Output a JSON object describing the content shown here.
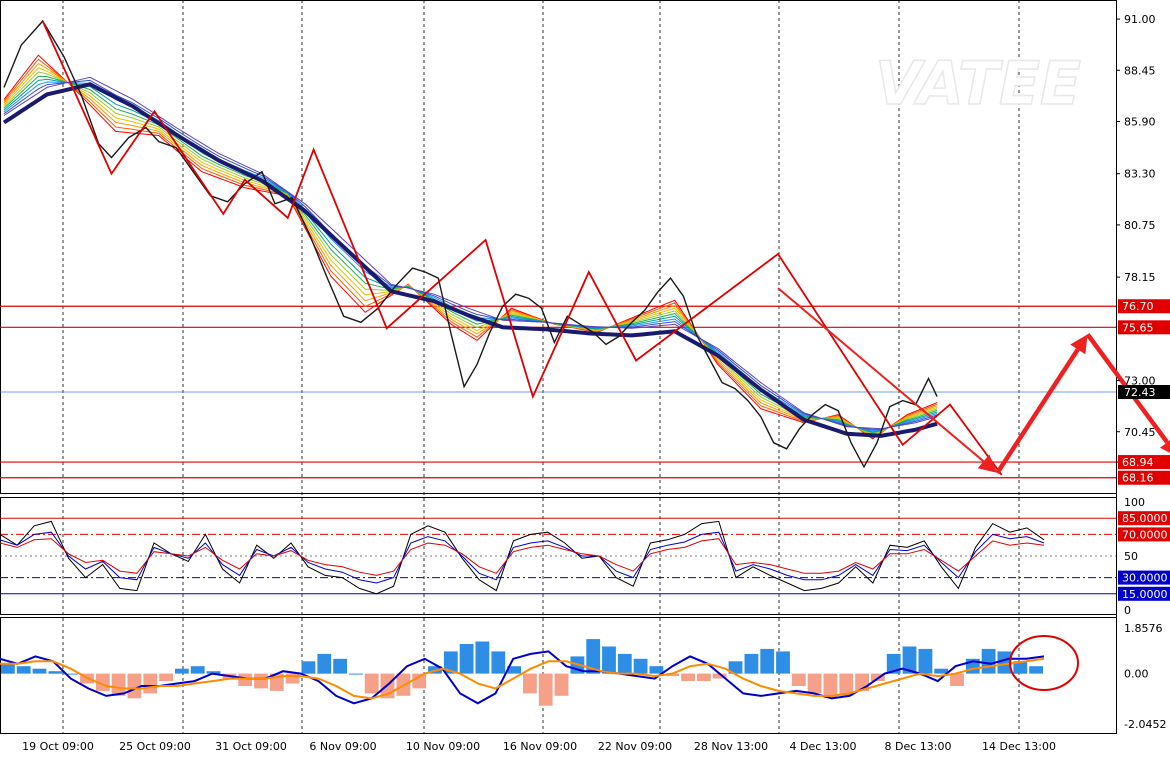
{
  "chart_data": {
    "type": "line",
    "watermark": "VATEE",
    "x_labels": [
      "19 Oct 09:00",
      "25 Oct 09:00",
      "31 Oct 09:00",
      "6 Nov 09:00",
      "10 Nov 09:00",
      "16 Nov 09:00",
      "22 Nov 09:00",
      "28 Nov 13:00",
      "4 Dec 13:00",
      "8 Dec 13:00",
      "14 Dec 13:00"
    ],
    "main": {
      "y_ticks": [
        "91.00",
        "88.45",
        "85.90",
        "83.30",
        "80.75",
        "78.15",
        "73.00",
        "70.45",
        "68.94"
      ],
      "ylim": [
        67.4,
        91.9
      ],
      "current_price": 72.43,
      "current_price_label": "72.43",
      "levels": [
        {
          "value": 76.7,
          "label": "76.70",
          "color": "#e00000"
        },
        {
          "value": 75.65,
          "label": "75.65",
          "color": "#e00000"
        },
        {
          "value": 68.94,
          "label": "68.94",
          "color": "#e00000"
        },
        {
          "value": 68.16,
          "label": "68.16",
          "color": "#e00000"
        }
      ],
      "price_path": [
        {
          "i": 0,
          "v": 87.6
        },
        {
          "i": 4,
          "v": 89.7
        },
        {
          "i": 9,
          "v": 90.9
        },
        {
          "i": 14,
          "v": 89.1
        },
        {
          "i": 18,
          "v": 87.2
        },
        {
          "i": 22,
          "v": 84.8
        },
        {
          "i": 25,
          "v": 84.1
        },
        {
          "i": 29,
          "v": 85.1
        },
        {
          "i": 33,
          "v": 85.6
        },
        {
          "i": 36,
          "v": 84.9
        },
        {
          "i": 40,
          "v": 84.6
        },
        {
          "i": 44,
          "v": 83.4
        },
        {
          "i": 48,
          "v": 82.2
        },
        {
          "i": 52,
          "v": 81.9
        },
        {
          "i": 56,
          "v": 82.8
        },
        {
          "i": 60,
          "v": 83.4
        },
        {
          "i": 63,
          "v": 81.8
        },
        {
          "i": 67,
          "v": 82.1
        },
        {
          "i": 71,
          "v": 80.3
        },
        {
          "i": 75,
          "v": 78.2
        },
        {
          "i": 79,
          "v": 76.2
        },
        {
          "i": 83,
          "v": 75.9
        },
        {
          "i": 87,
          "v": 76.6
        },
        {
          "i": 91,
          "v": 77.7
        },
        {
          "i": 95,
          "v": 78.6
        },
        {
          "i": 98,
          "v": 78.4
        },
        {
          "i": 101,
          "v": 78.1
        },
        {
          "i": 104,
          "v": 75.3
        },
        {
          "i": 107,
          "v": 72.7
        },
        {
          "i": 110,
          "v": 73.8
        },
        {
          "i": 113,
          "v": 75.4
        },
        {
          "i": 116,
          "v": 76.7
        },
        {
          "i": 119,
          "v": 77.3
        },
        {
          "i": 122,
          "v": 77.1
        },
        {
          "i": 125,
          "v": 76.6
        },
        {
          "i": 128,
          "v": 74.9
        },
        {
          "i": 131,
          "v": 76.2
        },
        {
          "i": 134,
          "v": 75.8
        },
        {
          "i": 137,
          "v": 75.4
        },
        {
          "i": 140,
          "v": 74.8
        },
        {
          "i": 143,
          "v": 75.2
        },
        {
          "i": 146,
          "v": 75.9
        },
        {
          "i": 149,
          "v": 76.5
        },
        {
          "i": 152,
          "v": 77.4
        },
        {
          "i": 155,
          "v": 78.1
        },
        {
          "i": 158,
          "v": 77.2
        },
        {
          "i": 161,
          "v": 75.3
        },
        {
          "i": 164,
          "v": 74.1
        },
        {
          "i": 167,
          "v": 72.9
        },
        {
          "i": 170,
          "v": 72.6
        },
        {
          "i": 173,
          "v": 72.0
        },
        {
          "i": 176,
          "v": 71.2
        },
        {
          "i": 179,
          "v": 69.9
        },
        {
          "i": 182,
          "v": 69.6
        },
        {
          "i": 185,
          "v": 70.6
        },
        {
          "i": 188,
          "v": 71.3
        },
        {
          "i": 191,
          "v": 71.8
        },
        {
          "i": 194,
          "v": 71.5
        },
        {
          "i": 197,
          "v": 69.9
        },
        {
          "i": 200,
          "v": 68.7
        },
        {
          "i": 203,
          "v": 69.9
        },
        {
          "i": 206,
          "v": 71.7
        },
        {
          "i": 209,
          "v": 72.0
        },
        {
          "i": 212,
          "v": 71.8
        },
        {
          "i": 215,
          "v": 73.1
        },
        {
          "i": 217,
          "v": 72.2
        }
      ],
      "ribbon_fast": [
        {
          "i": 0,
          "v": 87.0
        },
        {
          "i": 8,
          "v": 89.2
        },
        {
          "i": 16,
          "v": 87.6
        },
        {
          "i": 26,
          "v": 85.4
        },
        {
          "i": 36,
          "v": 85.2
        },
        {
          "i": 46,
          "v": 83.4
        },
        {
          "i": 56,
          "v": 82.6
        },
        {
          "i": 66,
          "v": 82.2
        },
        {
          "i": 76,
          "v": 78.2
        },
        {
          "i": 84,
          "v": 76.4
        },
        {
          "i": 94,
          "v": 77.8
        },
        {
          "i": 104,
          "v": 75.8
        },
        {
          "i": 110,
          "v": 75.0
        },
        {
          "i": 118,
          "v": 76.6
        },
        {
          "i": 128,
          "v": 75.8
        },
        {
          "i": 138,
          "v": 75.4
        },
        {
          "i": 148,
          "v": 76.3
        },
        {
          "i": 156,
          "v": 77.0
        },
        {
          "i": 166,
          "v": 73.8
        },
        {
          "i": 176,
          "v": 71.6
        },
        {
          "i": 186,
          "v": 70.9
        },
        {
          "i": 194,
          "v": 71.3
        },
        {
          "i": 202,
          "v": 70.1
        },
        {
          "i": 210,
          "v": 71.3
        },
        {
          "i": 217,
          "v": 71.9
        }
      ],
      "ribbon_slow": [
        {
          "i": 0,
          "v": 86.2
        },
        {
          "i": 10,
          "v": 87.6
        },
        {
          "i": 20,
          "v": 88.1
        },
        {
          "i": 30,
          "v": 87.0
        },
        {
          "i": 40,
          "v": 85.6
        },
        {
          "i": 50,
          "v": 84.3
        },
        {
          "i": 60,
          "v": 83.3
        },
        {
          "i": 70,
          "v": 81.8
        },
        {
          "i": 80,
          "v": 79.8
        },
        {
          "i": 90,
          "v": 77.8
        },
        {
          "i": 100,
          "v": 77.3
        },
        {
          "i": 108,
          "v": 76.6
        },
        {
          "i": 116,
          "v": 76.0
        },
        {
          "i": 126,
          "v": 75.9
        },
        {
          "i": 136,
          "v": 75.7
        },
        {
          "i": 146,
          "v": 75.6
        },
        {
          "i": 156,
          "v": 75.8
        },
        {
          "i": 166,
          "v": 74.6
        },
        {
          "i": 176,
          "v": 72.9
        },
        {
          "i": 186,
          "v": 71.4
        },
        {
          "i": 196,
          "v": 70.7
        },
        {
          "i": 204,
          "v": 70.6
        },
        {
          "i": 212,
          "v": 70.9
        },
        {
          "i": 217,
          "v": 71.2
        }
      ],
      "zigzag": [
        {
          "i": 9,
          "v": 90.9
        },
        {
          "i": 25,
          "v": 83.3
        },
        {
          "i": 35,
          "v": 86.4
        },
        {
          "i": 51,
          "v": 81.3
        },
        {
          "i": 56,
          "v": 83.0
        },
        {
          "i": 66,
          "v": 81.1
        },
        {
          "i": 72,
          "v": 84.5
        },
        {
          "i": 89,
          "v": 75.6
        },
        {
          "i": 112,
          "v": 80.0
        },
        {
          "i": 123,
          "v": 72.2
        },
        {
          "i": 136,
          "v": 78.4
        },
        {
          "i": 147,
          "v": 74.0
        },
        {
          "i": 180,
          "v": 79.3
        },
        {
          "i": 209,
          "v": 69.8
        },
        {
          "i": 220,
          "v": 71.8
        },
        {
          "i": 232,
          "v": 68.3
        }
      ],
      "arrows": [
        {
          "from_i": 180,
          "from_v": 77.6,
          "to_i": 231,
          "to_v": 68.4
        },
        {
          "from_i": 231,
          "from_v": 68.4,
          "to_i": 252,
          "to_v": 75.3
        },
        {
          "from_i": 252,
          "from_v": 75.3,
          "to_i": 273,
          "to_v": 69.2
        }
      ]
    },
    "rsi": {
      "y_ticks": [
        "100",
        "50",
        "0"
      ],
      "ylim": [
        0,
        100
      ],
      "levels": [
        {
          "value": 85,
          "label": "85.0000",
          "color": "#e00000",
          "style": "solid"
        },
        {
          "value": 70,
          "label": "70.0000",
          "color": "#e00000",
          "style": "dashdot"
        },
        {
          "value": 30,
          "label": "30.0000",
          "color": "#0000cc",
          "style": "dashdot"
        },
        {
          "value": 15,
          "label": "15.0000",
          "color": "#0000cc",
          "style": "solid"
        }
      ],
      "series": [
        {
          "name": "",
          "color": "#000000",
          "values": [
            70,
            60,
            78,
            82,
            48,
            30,
            42,
            20,
            18,
            62,
            52,
            45,
            70,
            38,
            25,
            60,
            48,
            62,
            40,
            32,
            30,
            20,
            15,
            22,
            70,
            78,
            72,
            48,
            28,
            18,
            64,
            70,
            72,
            62,
            48,
            50,
            30,
            22,
            62,
            65,
            70,
            80,
            82,
            30,
            40,
            32,
            25,
            18,
            20,
            25,
            40,
            25,
            60,
            58,
            64,
            40,
            20,
            58,
            80,
            72,
            76,
            65
          ]
        },
        {
          "name": "",
          "color": "#0000cc",
          "values": [
            65,
            60,
            70,
            72,
            50,
            38,
            45,
            30,
            28,
            58,
            52,
            48,
            62,
            42,
            32,
            56,
            50,
            58,
            44,
            38,
            35,
            28,
            25,
            30,
            62,
            68,
            64,
            50,
            34,
            28,
            58,
            62,
            64,
            58,
            50,
            50,
            36,
            30,
            56,
            60,
            63,
            70,
            72,
            36,
            42,
            38,
            32,
            28,
            28,
            32,
            42,
            32,
            56,
            55,
            60,
            44,
            30,
            54,
            70,
            66,
            68,
            62
          ]
        },
        {
          "name": "",
          "color": "#e00000",
          "values": [
            62,
            58,
            65,
            66,
            52,
            44,
            46,
            36,
            34,
            54,
            52,
            50,
            58,
            46,
            38,
            52,
            50,
            55,
            46,
            42,
            40,
            35,
            32,
            36,
            56,
            62,
            60,
            52,
            40,
            34,
            54,
            58,
            60,
            56,
            52,
            50,
            42,
            36,
            52,
            56,
            58,
            64,
            66,
            42,
            44,
            42,
            38,
            34,
            34,
            36,
            44,
            38,
            52,
            52,
            56,
            46,
            36,
            50,
            64,
            60,
            62,
            60
          ]
        }
      ]
    },
    "macd": {
      "y_ticks": [
        "1.8576",
        "0.00",
        "-2.0452"
      ],
      "ylim": [
        -2.2,
        2.05
      ],
      "histogram": [
        0.4,
        0.3,
        0.2,
        0.1,
        0.0,
        -0.4,
        -0.7,
        -0.9,
        -1.0,
        -0.8,
        -0.3,
        0.2,
        0.3,
        0.1,
        -0.2,
        -0.5,
        -0.6,
        -0.7,
        -0.4,
        0.5,
        0.8,
        0.6,
        0.0,
        -0.8,
        -1.0,
        -0.9,
        -0.6,
        0.3,
        0.9,
        1.2,
        1.3,
        0.9,
        0.3,
        -0.8,
        -1.3,
        -0.9,
        0.7,
        1.4,
        1.1,
        0.8,
        0.6,
        0.3,
        -0.1,
        -0.3,
        -0.3,
        -0.2,
        0.5,
        0.8,
        1.0,
        0.9,
        -0.5,
        -0.8,
        -1.0,
        -0.9,
        -0.7,
        -0.3,
        0.8,
        1.1,
        1.0,
        0.2,
        -0.5,
        0.6,
        1.0,
        0.9,
        0.5,
        0.3
      ],
      "series": [
        {
          "name": "",
          "color": "#0000cc",
          "values": [
            0.6,
            0.4,
            0.7,
            0.5,
            -0.2,
            -0.6,
            -0.9,
            -0.8,
            -0.5,
            -0.5,
            -0.4,
            -0.3,
            0.0,
            -0.1,
            -0.2,
            -0.2,
            0.1,
            0.0,
            -0.3,
            -0.9,
            -1.2,
            -1.0,
            -0.4,
            0.3,
            0.6,
            0.2,
            -0.8,
            -1.2,
            -0.8,
            0.6,
            0.8,
            0.9,
            0.3,
            0.1,
            0.1,
            0.0,
            -0.1,
            -0.2,
            0.3,
            0.7,
            0.4,
            -0.2,
            -0.8,
            -0.9,
            -0.8,
            -0.7,
            -0.8,
            -1.0,
            -0.9,
            -0.5,
            0.0,
            0.2,
            0.0,
            -0.3,
            0.3,
            0.5,
            0.4,
            0.6,
            0.6,
            0.7
          ]
        },
        {
          "name": "",
          "color": "#ff8c00",
          "values": [
            0.4,
            0.4,
            0.5,
            0.5,
            0.2,
            -0.2,
            -0.5,
            -0.6,
            -0.6,
            -0.5,
            -0.5,
            -0.4,
            -0.3,
            -0.2,
            -0.2,
            -0.2,
            -0.1,
            -0.1,
            -0.2,
            -0.5,
            -0.9,
            -1.0,
            -0.8,
            -0.4,
            0.0,
            0.2,
            0.0,
            -0.4,
            -0.6,
            -0.2,
            0.2,
            0.5,
            0.5,
            0.3,
            0.1,
            0.0,
            0.0,
            -0.1,
            0.0,
            0.3,
            0.4,
            0.2,
            -0.2,
            -0.5,
            -0.7,
            -0.8,
            -0.9,
            -0.9,
            -0.8,
            -0.6,
            -0.4,
            -0.2,
            0.0,
            -0.1,
            0.0,
            0.2,
            0.3,
            0.4,
            0.5,
            0.6
          ]
        }
      ]
    }
  }
}
